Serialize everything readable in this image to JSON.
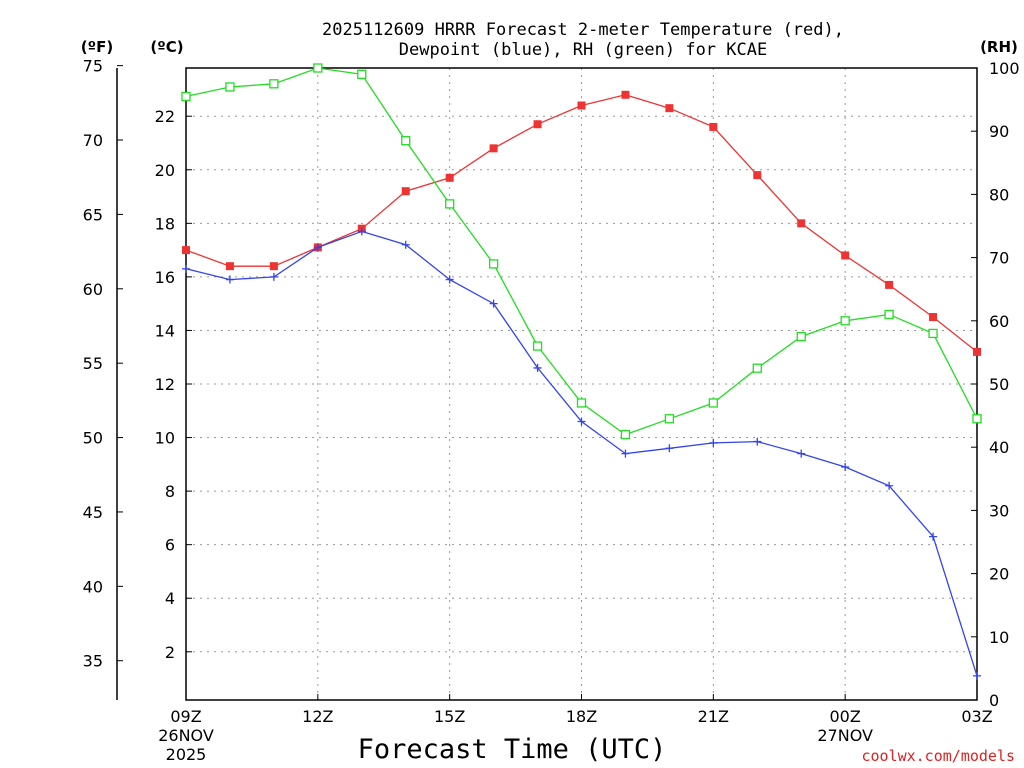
{
  "chart_data": {
    "type": "line",
    "title_line1": "2025112609 HRRR Forecast 2-meter Temperature (red),",
    "title_line2": "Dewpoint (blue), RH (green) for KCAE",
    "unit_f": "(ºF)",
    "unit_c": "(ºC)",
    "unit_rh": "(RH)",
    "xlabel": "Forecast Time (UTC)",
    "credit": "coolwx.com/models",
    "x_ticks": [
      {
        "hour": 0,
        "label": "09Z",
        "date": "26NOV",
        "year": "2025"
      },
      {
        "hour": 3,
        "label": "12Z"
      },
      {
        "hour": 6,
        "label": "15Z"
      },
      {
        "hour": 9,
        "label": "18Z"
      },
      {
        "hour": 12,
        "label": "21Z"
      },
      {
        "hour": 15,
        "label": "00Z",
        "date": "27NOV"
      },
      {
        "hour": 18,
        "label": "03Z"
      }
    ],
    "x_range": [
      0,
      18
    ],
    "celsius_range": [
      0.2,
      23.8
    ],
    "celsius_ticks": [
      "2",
      "4",
      "6",
      "8",
      "10",
      "12",
      "14",
      "16",
      "18",
      "20",
      "22"
    ],
    "fahrenheit_ticks": [
      "35",
      "40",
      "45",
      "50",
      "55",
      "60",
      "65",
      "70",
      "75"
    ],
    "rh_range": [
      0,
      100
    ],
    "rh_ticks": [
      "0",
      "10",
      "20",
      "30",
      "40",
      "50",
      "60",
      "70",
      "80",
      "90",
      "100"
    ],
    "series": [
      {
        "name": "Temperature",
        "units": "°C",
        "color": "#ee3333",
        "marker": "filled-square",
        "x": [
          0,
          1,
          2,
          3,
          4,
          5,
          6,
          7,
          8,
          9,
          10,
          11,
          12,
          13,
          14,
          15,
          16,
          17,
          18
        ],
        "values": [
          17.0,
          16.4,
          16.4,
          17.1,
          17.8,
          19.2,
          19.7,
          20.8,
          21.7,
          22.4,
          22.8,
          22.3,
          21.6,
          19.8,
          18.0,
          16.8,
          15.7,
          14.5,
          13.2
        ]
      },
      {
        "name": "Dewpoint",
        "units": "°C",
        "color": "#3344ee",
        "marker": "plus",
        "x": [
          0,
          1,
          2,
          3,
          4,
          5,
          6,
          7,
          8,
          9,
          10,
          11,
          12,
          13,
          14,
          15,
          16,
          17,
          18
        ],
        "values": [
          16.3,
          15.9,
          16.0,
          17.1,
          17.7,
          17.2,
          15.9,
          15.0,
          12.6,
          10.6,
          9.4,
          9.6,
          9.8,
          9.85,
          9.4,
          8.9,
          8.2,
          6.3,
          1.1
        ]
      },
      {
        "name": "RH",
        "units": "%",
        "color": "#22dd22",
        "marker": "open-square",
        "x": [
          0,
          1,
          2,
          3,
          4,
          5,
          6,
          7,
          8,
          9,
          10,
          11,
          12,
          13,
          14,
          15,
          16,
          17,
          18
        ],
        "values": [
          95.5,
          97.0,
          97.5,
          100.0,
          99.0,
          88.5,
          78.5,
          69.0,
          56.0,
          47.0,
          42.0,
          44.5,
          47.0,
          52.5,
          57.5,
          60.0,
          61.0,
          58.0,
          44.5
        ]
      }
    ]
  }
}
